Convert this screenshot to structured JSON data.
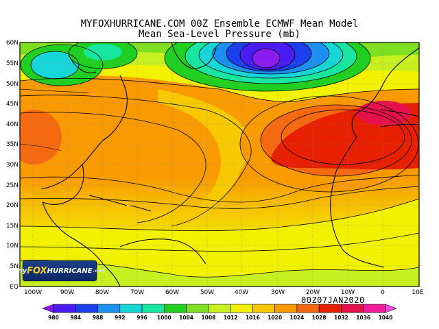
{
  "header": {
    "title_line1": "MYFOXHURRICANE.COM 00Z Ensemble ECMWF Mean Model",
    "title_line2": "Mean Sea-Level Pressure (mb)"
  },
  "map": {
    "lat_labels": [
      "60N",
      "55N",
      "50N",
      "45N",
      "40N",
      "35N",
      "30N",
      "25N",
      "20N",
      "15N",
      "10N",
      "5N",
      "EQ"
    ],
    "lon_labels": [
      "100W",
      "90W",
      "80W",
      "70W",
      "60W",
      "50W",
      "40W",
      "30W",
      "20W",
      "10W",
      "0",
      "10E"
    ],
    "timestamp": "00Z07JAN2020",
    "logo": {
      "prefix": "my",
      "brand": "FOX",
      "suffix": "HURRICANE",
      "domain": ".com"
    }
  },
  "colorbar": {
    "labels": [
      "980",
      "984",
      "988",
      "992",
      "996",
      "1000",
      "1004",
      "1008",
      "1012",
      "1016",
      "1020",
      "1024",
      "1028",
      "1032",
      "1036",
      "1040"
    ],
    "colors": [
      "#8a1cf2",
      "#4a1cf2",
      "#1c40f0",
      "#1c90f0",
      "#17d6d8",
      "#17e6a0",
      "#20d020",
      "#7ee020",
      "#c8f020",
      "#f2f200",
      "#f6c800",
      "#f89a00",
      "#f56a10",
      "#e62000",
      "#e8104a",
      "#f01c98",
      "#f64ae0"
    ]
  },
  "field_colors": {
    "low": "#4a1cf2",
    "mid": "#f2f200",
    "high": "#e62000"
  }
}
